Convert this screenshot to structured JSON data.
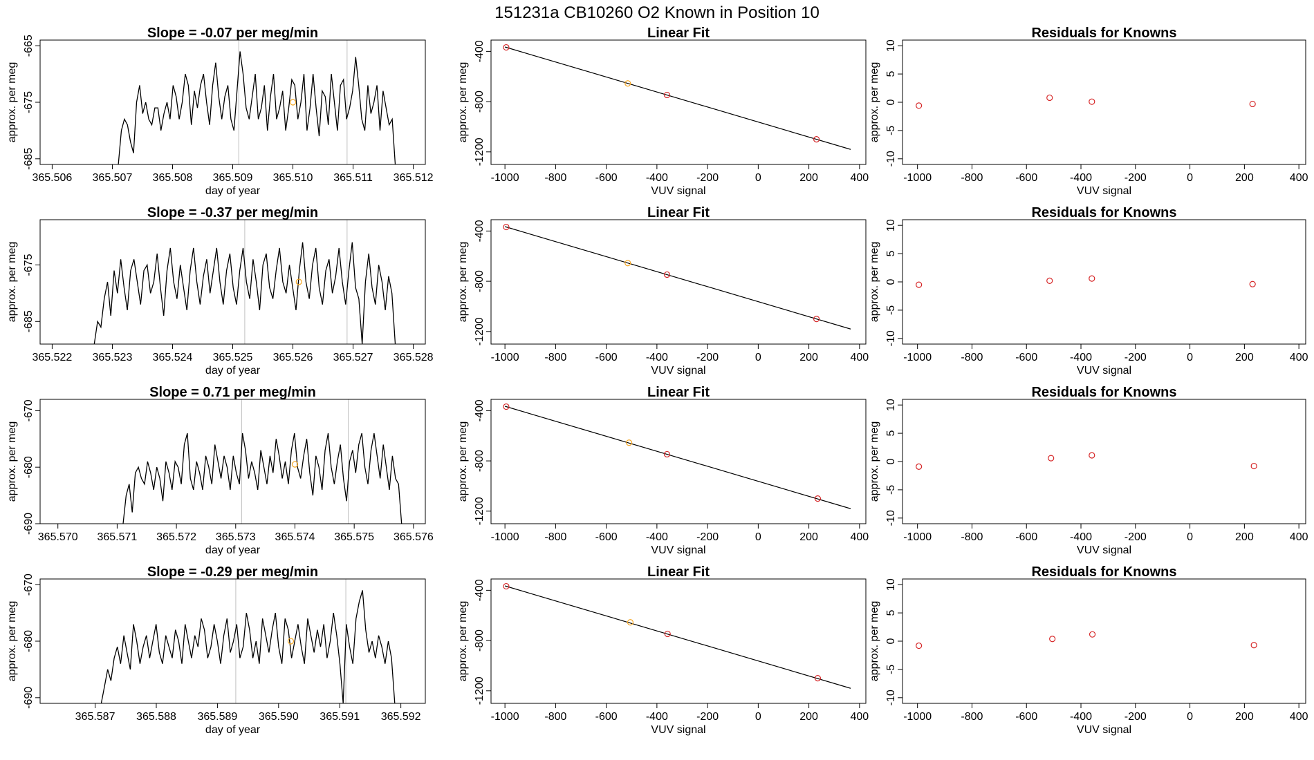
{
  "figure": {
    "title": "151231a      CB10260    O2 Known in Position  10"
  },
  "colors": {
    "line": "#000000",
    "frame": "#000000",
    "vline": "#bfbfbf",
    "point_red": "#d62728",
    "point_orange": "#f5a623"
  },
  "chart_data": [
    {
      "type": "line",
      "row": 0,
      "col": 0,
      "title": "Slope =  -0.07  per meg/min",
      "xlabel": "day of year",
      "ylabel": "approx. per meg",
      "xlim": [
        365.5058,
        365.5122
      ],
      "ylim": [
        -686,
        -664
      ],
      "xticks": [
        365.506,
        365.507,
        365.508,
        365.509,
        365.51,
        365.511,
        365.512
      ],
      "xtick_labels": [
        "365.506",
        "365.507",
        "365.508",
        "365.509",
        "365.510",
        "365.511",
        "365.512"
      ],
      "yticks": [
        -665,
        -675,
        -685
      ],
      "ytick_labels": [
        "-665",
        "-675",
        "-685"
      ],
      "vlines": [
        365.5091,
        365.5109
      ],
      "series_x_range": [
        365.5071,
        365.5117
      ],
      "series_y": [
        -686,
        -680,
        -678,
        -679,
        -682,
        -684,
        -675,
        -672,
        -677,
        -675,
        -678,
        -679,
        -676,
        -676,
        -680,
        -677,
        -675,
        -678,
        -672,
        -674,
        -678,
        -675,
        -670,
        -672,
        -679,
        -673,
        -676,
        -672,
        -670,
        -675,
        -679,
        -672,
        -668,
        -674,
        -678,
        -674,
        -672,
        -678,
        -680,
        -673,
        -666,
        -670,
        -676,
        -678,
        -674,
        -670,
        -678,
        -676,
        -672,
        -680,
        -674,
        -670,
        -678,
        -676,
        -673,
        -680,
        -676,
        -671,
        -672,
        -678,
        -675,
        -670,
        -680,
        -676,
        -670,
        -676,
        -681,
        -673,
        -674,
        -679,
        -670,
        -675,
        -680,
        -672,
        -671,
        -678,
        -676,
        -673,
        -667,
        -672,
        -678,
        -680,
        -672,
        -677,
        -675,
        -672,
        -680,
        -673,
        -676,
        -679,
        -678,
        -686
      ],
      "points": [
        {
          "x": 365.51,
          "y": -675,
          "color": "point_orange"
        }
      ]
    },
    {
      "type": "scatter_fit",
      "row": 0,
      "col": 1,
      "title": "Linear Fit",
      "xlabel": "VUV signal",
      "ylabel": "approx. per meg",
      "xlim": [
        -1055,
        425
      ],
      "ylim": [
        -1300,
        -310
      ],
      "xticks": [
        -1000,
        -800,
        -600,
        -400,
        -200,
        0,
        200,
        400
      ],
      "xtick_labels": [
        "-1000",
        "-800",
        "-600",
        "-400",
        "-200",
        "0",
        "200",
        "400"
      ],
      "yticks": [
        -400,
        -800,
        -1200
      ],
      "ytick_labels": [
        "-400",
        "-800",
        "-1200"
      ],
      "fit": {
        "slope": -0.5973,
        "intercept": -962.35
      },
      "fit_x": [
        -1000,
        365
      ],
      "points": [
        {
          "x": -995,
          "y": -368,
          "color": "point_red"
        },
        {
          "x": -515,
          "y": -655,
          "color": "point_orange"
        },
        {
          "x": -360,
          "y": -747,
          "color": "point_red"
        },
        {
          "x": 230,
          "y": -1100,
          "color": "point_red"
        }
      ]
    },
    {
      "type": "scatter",
      "row": 0,
      "col": 2,
      "title": "Residuals for Knowns",
      "xlabel": "VUV signal",
      "ylabel": "approx. per meg",
      "xlim": [
        -1055,
        425
      ],
      "ylim": [
        -11,
        11
      ],
      "xticks": [
        -1000,
        -800,
        -600,
        -400,
        -200,
        0,
        200,
        400
      ],
      "xtick_labels": [
        "-1000",
        "-800",
        "-600",
        "-400",
        "-200",
        "0",
        "200",
        "400"
      ],
      "yticks": [
        10,
        5,
        0,
        -5,
        -10
      ],
      "ytick_labels": [
        "10",
        "5",
        "0",
        "-5",
        "-10"
      ],
      "points": [
        {
          "x": -995,
          "y": -0.6,
          "color": "point_red"
        },
        {
          "x": -515,
          "y": 0.8,
          "color": "point_red"
        },
        {
          "x": -360,
          "y": 0.1,
          "color": "point_red"
        },
        {
          "x": 230,
          "y": -0.3,
          "color": "point_red"
        }
      ]
    },
    {
      "type": "line",
      "row": 1,
      "col": 0,
      "title": "Slope =  -0.37  per meg/min",
      "xlabel": "day of year",
      "ylabel": "approx. per meg",
      "xlim": [
        365.5218,
        365.5282
      ],
      "ylim": [
        -689,
        -667
      ],
      "xticks": [
        365.522,
        365.523,
        365.524,
        365.525,
        365.526,
        365.527,
        365.528
      ],
      "xtick_labels": [
        "365.522",
        "365.523",
        "365.524",
        "365.525",
        "365.526",
        "365.527",
        "365.528"
      ],
      "yticks": [
        -675,
        -685
      ],
      "ytick_labels": [
        "-675",
        "-685"
      ],
      "vlines": [
        365.5252,
        365.5269
      ],
      "series_x_range": [
        365.5227,
        365.5277
      ],
      "series_y": [
        -689,
        -685,
        -686,
        -681,
        -678,
        -684,
        -676,
        -680,
        -674,
        -679,
        -683,
        -676,
        -674,
        -678,
        -682,
        -676,
        -675,
        -680,
        -678,
        -673,
        -679,
        -684,
        -676,
        -672,
        -678,
        -681,
        -675,
        -679,
        -683,
        -676,
        -672,
        -678,
        -682,
        -677,
        -674,
        -680,
        -676,
        -672,
        -678,
        -682,
        -676,
        -673,
        -679,
        -682,
        -676,
        -672,
        -678,
        -681,
        -674,
        -678,
        -683,
        -675,
        -673,
        -679,
        -681,
        -676,
        -672,
        -678,
        -680,
        -675,
        -679,
        -683,
        -676,
        -671,
        -678,
        -681,
        -675,
        -672,
        -679,
        -682,
        -676,
        -674,
        -680,
        -677,
        -672,
        -678,
        -682,
        -676,
        -671,
        -679,
        -681,
        -689,
        -678,
        -673,
        -679,
        -682,
        -675,
        -678,
        -683,
        -677,
        -680,
        -689
      ],
      "points": [
        {
          "x": 365.5261,
          "y": -678,
          "color": "point_orange"
        }
      ]
    },
    {
      "type": "scatter_fit",
      "row": 1,
      "col": 1,
      "title": "Linear Fit",
      "xlabel": "VUV signal",
      "ylabel": "approx. per meg",
      "xlim": [
        -1055,
        425
      ],
      "ylim": [
        -1300,
        -310
      ],
      "xticks": [
        -1000,
        -800,
        -600,
        -400,
        -200,
        0,
        200,
        400
      ],
      "xtick_labels": [
        "-1000",
        "-800",
        "-600",
        "-400",
        "-200",
        "0",
        "200",
        "400"
      ],
      "yticks": [
        -400,
        -800,
        -1200
      ],
      "ytick_labels": [
        "-400",
        "-800",
        "-1200"
      ],
      "fit": {
        "slope": -0.5973,
        "intercept": -962.35
      },
      "fit_x": [
        -1000,
        365
      ],
      "points": [
        {
          "x": -995,
          "y": -368,
          "color": "point_red"
        },
        {
          "x": -515,
          "y": -655,
          "color": "point_orange"
        },
        {
          "x": -360,
          "y": -747,
          "color": "point_red"
        },
        {
          "x": 230,
          "y": -1100,
          "color": "point_red"
        }
      ]
    },
    {
      "type": "scatter",
      "row": 1,
      "col": 2,
      "title": "Residuals for Knowns",
      "xlabel": "VUV signal",
      "ylabel": "approx. per meg",
      "xlim": [
        -1055,
        425
      ],
      "ylim": [
        -11,
        11
      ],
      "xticks": [
        -1000,
        -800,
        -600,
        -400,
        -200,
        0,
        200,
        400
      ],
      "xtick_labels": [
        "-1000",
        "-800",
        "-600",
        "-400",
        "-200",
        "0",
        "200",
        "400"
      ],
      "yticks": [
        10,
        5,
        0,
        -5,
        -10
      ],
      "ytick_labels": [
        "10",
        "5",
        "0",
        "-5",
        "-10"
      ],
      "points": [
        {
          "x": -995,
          "y": -0.5,
          "color": "point_red"
        },
        {
          "x": -515,
          "y": 0.2,
          "color": "point_red"
        },
        {
          "x": -360,
          "y": 0.6,
          "color": "point_red"
        },
        {
          "x": 230,
          "y": -0.4,
          "color": "point_red"
        }
      ]
    },
    {
      "type": "line",
      "row": 2,
      "col": 0,
      "title": "Slope =  0.71  per meg/min",
      "xlabel": "day of year",
      "ylabel": "approx. per meg",
      "xlim": [
        365.5697,
        365.5762
      ],
      "ylim": [
        -690,
        -668
      ],
      "xticks": [
        365.57,
        365.571,
        365.572,
        365.573,
        365.574,
        365.575,
        365.576
      ],
      "xtick_labels": [
        "365.570",
        "365.571",
        "365.572",
        "365.573",
        "365.574",
        "365.575",
        "365.576"
      ],
      "yticks": [
        -670,
        -680,
        -690
      ],
      "ytick_labels": [
        "-670",
        "-680",
        "-690"
      ],
      "vlines": [
        365.5731,
        365.5749
      ],
      "series_x_range": [
        365.5711,
        365.5758
      ],
      "series_y": [
        -690,
        -685,
        -683,
        -688,
        -681,
        -680,
        -682,
        -683,
        -679,
        -681,
        -684,
        -680,
        -682,
        -686,
        -679,
        -681,
        -684,
        -679,
        -680,
        -683,
        -676,
        -674,
        -682,
        -684,
        -679,
        -681,
        -684,
        -678,
        -680,
        -683,
        -676,
        -679,
        -682,
        -678,
        -680,
        -684,
        -678,
        -681,
        -683,
        -674,
        -677,
        -682,
        -679,
        -681,
        -684,
        -677,
        -680,
        -683,
        -678,
        -681,
        -675,
        -678,
        -682,
        -679,
        -683,
        -677,
        -674,
        -680,
        -682,
        -678,
        -675,
        -681,
        -685,
        -678,
        -680,
        -684,
        -677,
        -674,
        -680,
        -683,
        -679,
        -676,
        -682,
        -686,
        -679,
        -677,
        -681,
        -676,
        -674,
        -680,
        -683,
        -677,
        -674,
        -678,
        -682,
        -676,
        -680,
        -684,
        -678,
        -682,
        -683,
        -690
      ],
      "points": [
        {
          "x": 365.574,
          "y": -679.5,
          "color": "point_orange"
        }
      ]
    },
    {
      "type": "scatter_fit",
      "row": 2,
      "col": 1,
      "title": "Linear Fit",
      "xlabel": "VUV signal",
      "ylabel": "approx. per meg",
      "xlim": [
        -1055,
        425
      ],
      "ylim": [
        -1300,
        -310
      ],
      "xticks": [
        -1000,
        -800,
        -600,
        -400,
        -200,
        0,
        200,
        400
      ],
      "xtick_labels": [
        "-1000",
        "-800",
        "-600",
        "-400",
        "-200",
        "0",
        "200",
        "400"
      ],
      "yticks": [
        -400,
        -800,
        -1200
      ],
      "ytick_labels": [
        "-400",
        "-800",
        "-1200"
      ],
      "fit": {
        "slope": -0.5973,
        "intercept": -962.35
      },
      "fit_x": [
        -1000,
        365
      ],
      "points": [
        {
          "x": -995,
          "y": -368,
          "color": "point_red"
        },
        {
          "x": -510,
          "y": -655,
          "color": "point_orange"
        },
        {
          "x": -360,
          "y": -747,
          "color": "point_red"
        },
        {
          "x": 235,
          "y": -1100,
          "color": "point_red"
        }
      ]
    },
    {
      "type": "scatter",
      "row": 2,
      "col": 2,
      "title": "Residuals for Knowns",
      "xlabel": "VUV signal",
      "ylabel": "approx. per meg",
      "xlim": [
        -1055,
        425
      ],
      "ylim": [
        -11,
        11
      ],
      "xticks": [
        -1000,
        -800,
        -600,
        -400,
        -200,
        0,
        200,
        400
      ],
      "xtick_labels": [
        "-1000",
        "-800",
        "-600",
        "-400",
        "-200",
        "0",
        "200",
        "400"
      ],
      "yticks": [
        10,
        5,
        0,
        -5,
        -10
      ],
      "ytick_labels": [
        "10",
        "5",
        "0",
        "-5",
        "-10"
      ],
      "points": [
        {
          "x": -995,
          "y": -0.9,
          "color": "point_red"
        },
        {
          "x": -510,
          "y": 0.6,
          "color": "point_red"
        },
        {
          "x": -360,
          "y": 1.1,
          "color": "point_red"
        },
        {
          "x": 235,
          "y": -0.8,
          "color": "point_red"
        }
      ]
    },
    {
      "type": "line",
      "row": 3,
      "col": 0,
      "title": "Slope =  -0.29  per meg/min",
      "xlabel": "day of year",
      "ylabel": "approx. per meg",
      "xlim": [
        365.5861,
        365.5924
      ],
      "ylim": [
        -691,
        -669
      ],
      "xticks": [
        365.587,
        365.588,
        365.589,
        365.59,
        365.591,
        365.592
      ],
      "xtick_labels": [
        "365.587",
        "365.588",
        "365.589",
        "365.590",
        "365.591",
        "365.592"
      ],
      "yticks": [
        -670,
        -680,
        -690
      ],
      "ytick_labels": [
        "-670",
        "-680",
        "-690"
      ],
      "vlines": [
        365.5893,
        365.5911
      ],
      "series_x_range": [
        365.5871,
        365.5919
      ],
      "series_y": [
        -691,
        -688,
        -685,
        -687,
        -683,
        -681,
        -684,
        -679,
        -682,
        -685,
        -677,
        -680,
        -684,
        -681,
        -679,
        -683,
        -680,
        -677,
        -682,
        -684,
        -679,
        -681,
        -683,
        -678,
        -680,
        -684,
        -677,
        -680,
        -683,
        -679,
        -681,
        -676,
        -678,
        -683,
        -681,
        -677,
        -680,
        -684,
        -679,
        -676,
        -682,
        -680,
        -677,
        -683,
        -681,
        -675,
        -678,
        -683,
        -680,
        -684,
        -676,
        -679,
        -682,
        -678,
        -675,
        -681,
        -684,
        -676,
        -678,
        -683,
        -680,
        -677,
        -681,
        -684,
        -676,
        -679,
        -682,
        -678,
        -681,
        -677,
        -683,
        -680,
        -675,
        -679,
        -684,
        -691,
        -677,
        -681,
        -684,
        -676,
        -673,
        -671,
        -678,
        -682,
        -680,
        -683,
        -679,
        -681,
        -684,
        -680,
        -683,
        -691
      ],
      "points": [
        {
          "x": 365.5902,
          "y": -680,
          "color": "point_orange"
        }
      ]
    },
    {
      "type": "scatter_fit",
      "row": 3,
      "col": 1,
      "title": "Linear Fit",
      "xlabel": "VUV signal",
      "ylabel": "approx. per meg",
      "xlim": [
        -1055,
        425
      ],
      "ylim": [
        -1300,
        -310
      ],
      "xticks": [
        -1000,
        -800,
        -600,
        -400,
        -200,
        0,
        200,
        400
      ],
      "xtick_labels": [
        "-1000",
        "-800",
        "-600",
        "-400",
        "-200",
        "0",
        "200",
        "400"
      ],
      "yticks": [
        -400,
        -800,
        -1200
      ],
      "ytick_labels": [
        "-400",
        "-800",
        "-1200"
      ],
      "fit": {
        "slope": -0.5973,
        "intercept": -962.35
      },
      "fit_x": [
        -1000,
        365
      ],
      "points": [
        {
          "x": -995,
          "y": -368,
          "color": "point_red"
        },
        {
          "x": -505,
          "y": -655,
          "color": "point_orange"
        },
        {
          "x": -358,
          "y": -747,
          "color": "point_red"
        },
        {
          "x": 235,
          "y": -1100,
          "color": "point_red"
        }
      ]
    },
    {
      "type": "scatter",
      "row": 3,
      "col": 2,
      "title": "Residuals for Knowns",
      "xlabel": "VUV signal",
      "ylabel": "approx. per meg",
      "xlim": [
        -1055,
        425
      ],
      "ylim": [
        -11,
        11
      ],
      "xticks": [
        -1000,
        -800,
        -600,
        -400,
        -200,
        0,
        200,
        400
      ],
      "xtick_labels": [
        "-1000",
        "-800",
        "-600",
        "-400",
        "-200",
        "0",
        "200",
        "400"
      ],
      "yticks": [
        10,
        5,
        0,
        -5,
        -10
      ],
      "ytick_labels": [
        "10",
        "5",
        "0",
        "-5",
        "-10"
      ],
      "points": [
        {
          "x": -995,
          "y": -0.8,
          "color": "point_red"
        },
        {
          "x": -505,
          "y": 0.4,
          "color": "point_red"
        },
        {
          "x": -358,
          "y": 1.2,
          "color": "point_red"
        },
        {
          "x": 235,
          "y": -0.7,
          "color": "point_red"
        }
      ]
    }
  ]
}
